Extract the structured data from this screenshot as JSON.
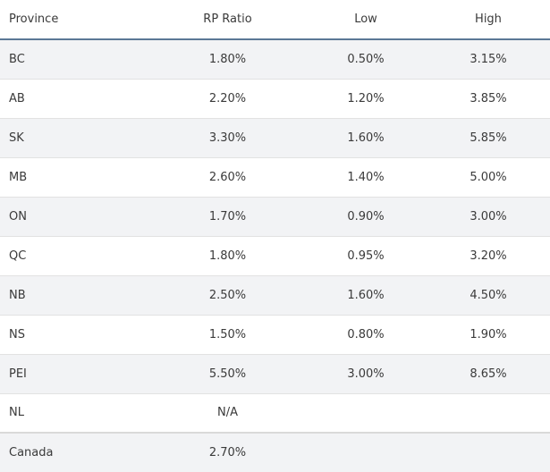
{
  "table": {
    "headers": [
      "Province",
      "RP Ratio",
      "Low",
      "High"
    ],
    "rows": [
      {
        "province": "BC",
        "rp": "1.80%",
        "low": "0.50%",
        "high": "3.15%"
      },
      {
        "province": "AB",
        "rp": "2.20%",
        "low": "1.20%",
        "high": "3.85%"
      },
      {
        "province": "SK",
        "rp": "3.30%",
        "low": "1.60%",
        "high": "5.85%"
      },
      {
        "province": "MB",
        "rp": "2.60%",
        "low": "1.40%",
        "high": "5.00%"
      },
      {
        "province": "ON",
        "rp": "1.70%",
        "low": "0.90%",
        "high": "3.00%"
      },
      {
        "province": "QC",
        "rp": "1.80%",
        "low": "0.95%",
        "high": "3.20%"
      },
      {
        "province": "NB",
        "rp": "2.50%",
        "low": "1.60%",
        "high": "4.50%"
      },
      {
        "province": "NS",
        "rp": "1.50%",
        "low": "0.80%",
        "high": "1.90%"
      },
      {
        "province": "PEI",
        "rp": "5.50%",
        "low": "3.00%",
        "high": "8.65%"
      },
      {
        "province": "NL",
        "rp": "N/A",
        "low": "",
        "high": ""
      },
      {
        "province": "Canada",
        "rp": "2.70%",
        "low": "",
        "high": ""
      }
    ]
  }
}
